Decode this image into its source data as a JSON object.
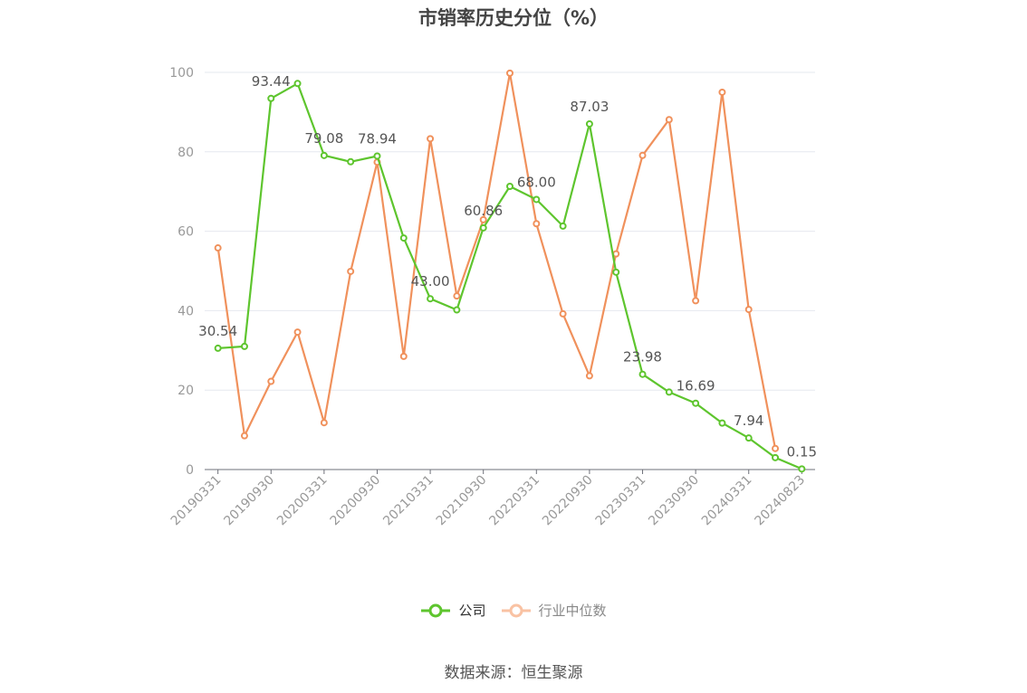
{
  "chart_data": {
    "type": "line",
    "title": "市销率历史分位（%）",
    "categories": [
      "20190331",
      "20190630",
      "20190930",
      "20191231",
      "20200331",
      "20200630",
      "20200930",
      "20201231",
      "20210331",
      "20210630",
      "20210930",
      "20211231",
      "20220331",
      "20220630",
      "20220930",
      "20221231",
      "20230331",
      "20230630",
      "20230930",
      "20231231",
      "20240331",
      "20240630",
      "20240823"
    ],
    "x_tick_labels": [
      "20190331",
      "20190930",
      "20200331",
      "20200930",
      "20210331",
      "20210930",
      "20220331",
      "20220930",
      "20230331",
      "20230930",
      "20240331",
      "20240823"
    ],
    "y_ticks": [
      0,
      20,
      40,
      60,
      80,
      100
    ],
    "ylim": [
      0,
      100
    ],
    "grid": true,
    "legend_position": "bottom",
    "series": [
      {
        "name": "公司",
        "color": "#5ec52e",
        "values": [
          30.54,
          31.0,
          93.44,
          97.2,
          79.08,
          77.5,
          78.94,
          58.3,
          43.0,
          40.2,
          60.86,
          71.3,
          68.0,
          61.3,
          87.03,
          49.7,
          23.98,
          19.5,
          16.69,
          11.7,
          7.94,
          3.0,
          0.15
        ],
        "data_labels": [
          "30.54",
          null,
          "93.44",
          null,
          "79.08",
          null,
          "78.94",
          null,
          "43.00",
          null,
          "60.86",
          null,
          "68.00",
          null,
          "87.03",
          null,
          "23.98",
          null,
          "16.69",
          null,
          "7.94",
          null,
          "0.15"
        ]
      },
      {
        "name": "行业中位数",
        "color": "#f0915c",
        "values": [
          55.8,
          8.5,
          22.2,
          34.6,
          11.8,
          49.9,
          77.4,
          28.5,
          83.3,
          43.7,
          62.9,
          99.8,
          61.9,
          39.2,
          23.6,
          54.3,
          79.1,
          88.1,
          42.5,
          95.0,
          40.3,
          5.3,
          null
        ],
        "data_labels": []
      }
    ]
  },
  "legend": {
    "company_label": "公司",
    "industry_label": "行业中位数"
  },
  "source_text": "数据来源：恒生聚源"
}
